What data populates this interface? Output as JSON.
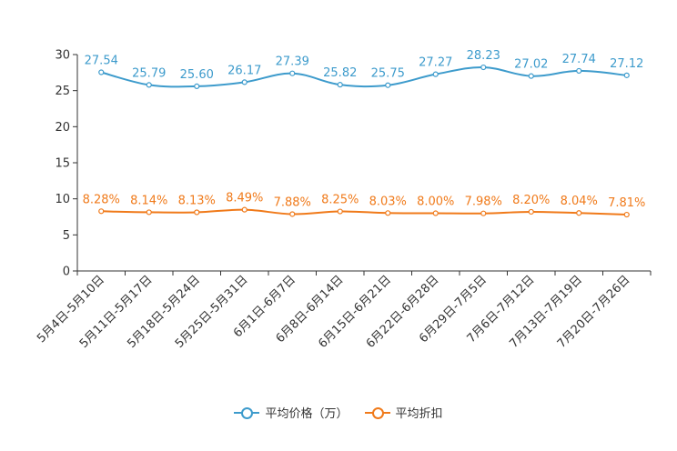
{
  "chart_data": {
    "type": "line",
    "title": "",
    "xlabel": "",
    "ylabel": "",
    "ylim": [
      0,
      30
    ],
    "yticks": [
      0,
      5,
      10,
      15,
      20,
      25,
      30
    ],
    "categories": [
      "5月4日-5月10日",
      "5月11日-5月17日",
      "5月18日-5月24日",
      "5月25日-5月31日",
      "6月1日-6月7日",
      "6月8日-6月14日",
      "6月15日-6月21日",
      "6月22日-6月28日",
      "6月29日-7月5日",
      "7月6日-7月12日",
      "7月13日-7月19日",
      "7月20日-7月26日"
    ],
    "series": [
      {
        "name": "平均价格（万）",
        "color": "#3d9bcc",
        "values": [
          27.54,
          25.79,
          25.6,
          26.17,
          27.39,
          25.82,
          25.75,
          27.27,
          28.23,
          27.02,
          27.74,
          27.12
        ],
        "labels": [
          "27.54",
          "25.79",
          "25.60",
          "26.17",
          "27.39",
          "25.82",
          "25.75",
          "27.27",
          "28.23",
          "27.02",
          "27.74",
          "27.12"
        ]
      },
      {
        "name": "平均折扣",
        "color": "#f07a1a",
        "values": [
          8.28,
          8.14,
          8.13,
          8.49,
          7.88,
          8.25,
          8.03,
          8.0,
          7.98,
          8.2,
          8.04,
          7.81
        ],
        "labels": [
          "8.28%",
          "8.14%",
          "8.13%",
          "8.49%",
          "7.88%",
          "8.25%",
          "8.03%",
          "8.00%",
          "7.98%",
          "8.20%",
          "8.04%",
          "7.81%"
        ]
      }
    ],
    "legend_position": "bottom-center"
  }
}
